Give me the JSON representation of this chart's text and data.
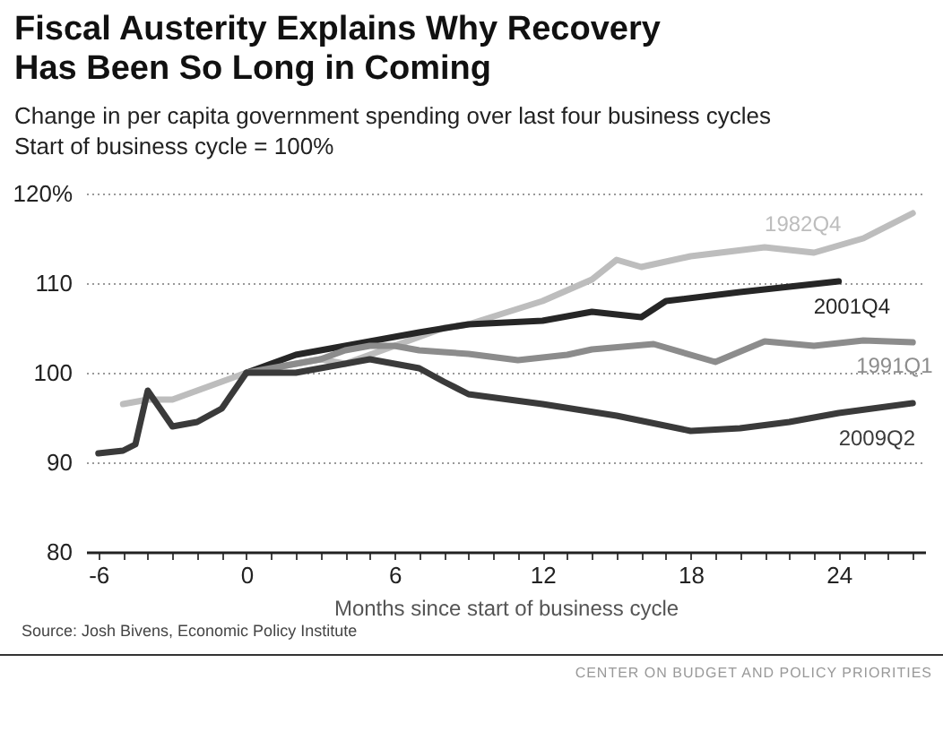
{
  "chart_data": {
    "type": "line",
    "title": "Fiscal Austerity Explains Why Recovery\nHas Been So Long in Coming",
    "subtitle": "Change in per capita government spending over last four business cycles\nStart of business cycle = 100%",
    "xlabel": "Months since start of business cycle",
    "annotations": [
      "Source: Josh Bivens, Economic Policy Institute",
      "CENTER ON BUDGET AND POLICY PRIORITIES"
    ],
    "series": [
      {
        "name": "1982Q4",
        "color": "#bdbdbd",
        "x": [
          -5,
          -4,
          -3,
          -2,
          -1,
          0,
          1,
          2,
          3,
          4,
          5,
          6,
          7,
          8,
          9,
          12,
          14,
          15,
          16,
          18,
          21,
          23,
          25,
          27
        ],
        "values": [
          96.5,
          97,
          97,
          98,
          99,
          100,
          100.5,
          101,
          101.5,
          101,
          102,
          103,
          104,
          105,
          105.4,
          108,
          110.4,
          112.6,
          111.8,
          113,
          114,
          113.4,
          115,
          117.8
        ]
      },
      {
        "name": "2001Q4",
        "color": "#262626",
        "x": [
          0,
          2,
          4,
          5,
          7,
          9,
          12,
          14,
          16,
          17,
          20,
          22,
          24
        ],
        "values": [
          100,
          102,
          103,
          103.5,
          104.5,
          105.4,
          105.8,
          106.8,
          106.2,
          108,
          109,
          109.6,
          110.2
        ]
      },
      {
        "name": "1991Q1",
        "color": "#8c8c8c",
        "x": [
          0,
          2,
          3,
          4,
          5,
          6,
          7,
          8,
          9,
          11,
          13,
          14,
          16.5,
          19,
          21,
          23,
          25,
          27
        ],
        "values": [
          100,
          101,
          101.5,
          102.5,
          103,
          103,
          102.5,
          102.3,
          102.1,
          101.4,
          102,
          102.6,
          103.2,
          101.2,
          103.5,
          103,
          103.6,
          103.4
        ]
      },
      {
        "name": "2009Q2",
        "color": "#3a3a3a",
        "x": [
          -6,
          -5,
          -4.5,
          -4,
          -3.5,
          -3,
          -2,
          -1,
          0,
          1,
          2,
          3,
          4,
          5,
          6,
          7,
          8,
          9,
          12,
          15,
          18,
          20,
          22,
          24,
          27
        ],
        "values": [
          91,
          91.3,
          92,
          98,
          96,
          94,
          94.5,
          96,
          100,
          100,
          100,
          100.5,
          101,
          101.5,
          101,
          100.5,
          99,
          97.6,
          96.5,
          95.2,
          93.5,
          93.8,
          94.5,
          95.5,
          96.6
        ]
      }
    ],
    "xlim": [
      -6.5,
      27.5
    ],
    "xticks": [
      -6,
      {
        "value": -5,
        "label": null
      },
      {
        "value": -4,
        "label": null
      },
      {
        "value": -3,
        "label": null
      },
      {
        "value": -2,
        "label": null
      },
      {
        "value": -1,
        "label": null
      },
      0,
      {
        "value": 1,
        "label": null
      },
      {
        "value": 2,
        "label": null
      },
      {
        "value": 3,
        "label": null
      },
      {
        "value": 4,
        "label": null
      },
      {
        "value": 5,
        "label": null
      },
      6,
      {
        "value": 7,
        "label": null
      },
      {
        "value": 8,
        "label": null
      },
      {
        "value": 9,
        "label": null
      },
      {
        "value": 10,
        "label": null
      },
      {
        "value": 11,
        "label": null
      },
      12,
      {
        "value": 13,
        "label": null
      },
      {
        "value": 14,
        "label": null
      },
      {
        "value": 15,
        "label": null
      },
      {
        "value": 16,
        "label": null
      },
      {
        "value": 17,
        "label": null
      },
      18,
      {
        "value": 19,
        "label": null
      },
      {
        "value": 20,
        "label": null
      },
      {
        "value": 21,
        "label": null
      },
      {
        "value": 22,
        "label": null
      },
      {
        "value": 23,
        "label": null
      },
      24,
      {
        "value": 25,
        "label": null
      },
      {
        "value": 26,
        "label": null
      },
      {
        "value": 27,
        "label": null
      }
    ],
    "ylim": [
      80,
      120
    ],
    "yticks": [
      80,
      90,
      100,
      110,
      {
        "value": 120,
        "label": "120%"
      }
    ],
    "grid": "y",
    "legend": false,
    "marker": "none",
    "line_style": "solid"
  }
}
